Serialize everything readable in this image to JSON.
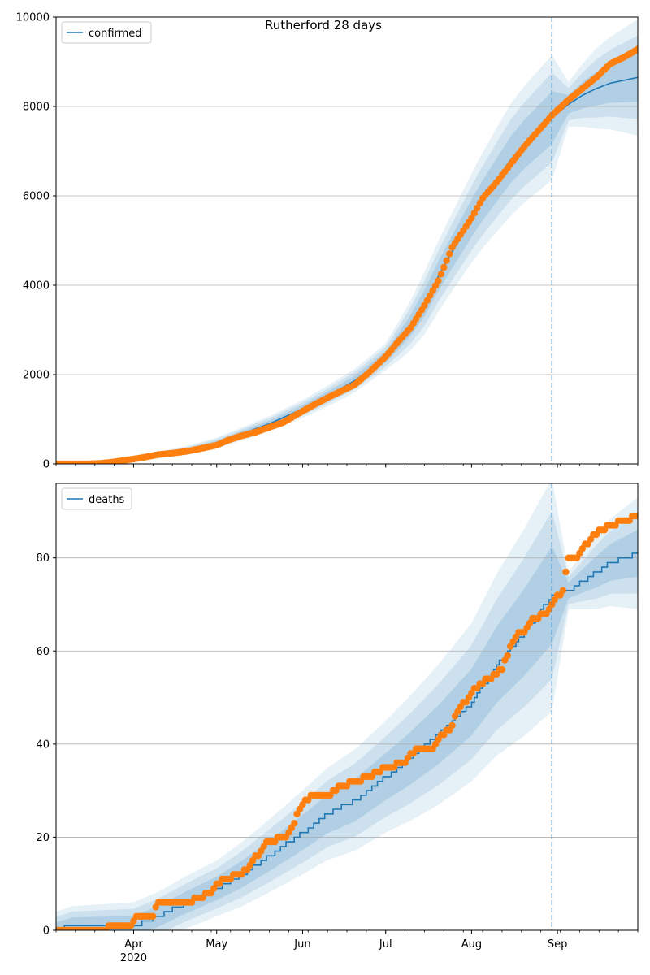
{
  "chart_data": {
    "type": "line",
    "title": "Rutherford 28 days",
    "colors": {
      "fit_line": "#1f77b4",
      "observed_points": "#ff7f0e",
      "uncertainty_band": "#1f77b4",
      "forecast_marker": "#1f77b4",
      "grid": "#b0b0b0"
    },
    "x_axis": {
      "type": "date",
      "range": [
        "2020-03-04",
        "2020-09-30"
      ],
      "tick_labels": [
        "Apr",
        "May",
        "Jun",
        "Jul",
        "Aug",
        "Sep"
      ],
      "tick_dates": [
        "2020-04-01",
        "2020-05-01",
        "2020-06-01",
        "2020-07-01",
        "2020-08-01",
        "2020-09-01"
      ],
      "year_label": "2020"
    },
    "forecast_start": "2020-08-30",
    "panels": [
      {
        "legend": "confirmed",
        "legend_position": "upper left",
        "ylim": [
          0,
          10000
        ],
        "yticks": [
          0,
          2000,
          4000,
          6000,
          8000,
          10000
        ],
        "grid": "y",
        "model_curve": [
          [
            "2020-03-04",
            0
          ],
          [
            "2020-03-15",
            5
          ],
          [
            "2020-03-25",
            40
          ],
          [
            "2020-04-01",
            110
          ],
          [
            "2020-04-10",
            200
          ],
          [
            "2020-04-20",
            300
          ],
          [
            "2020-05-01",
            470
          ],
          [
            "2020-05-10",
            670
          ],
          [
            "2020-05-20",
            900
          ],
          [
            "2020-06-01",
            1230
          ],
          [
            "2020-06-10",
            1520
          ],
          [
            "2020-06-20",
            1870
          ],
          [
            "2020-07-01",
            2400
          ],
          [
            "2020-07-05",
            2700
          ],
          [
            "2020-07-10",
            3100
          ],
          [
            "2020-07-15",
            3600
          ],
          [
            "2020-07-20",
            4200
          ],
          [
            "2020-07-25",
            4750
          ],
          [
            "2020-08-01",
            5500
          ],
          [
            "2020-08-05",
            5900
          ],
          [
            "2020-08-10",
            6350
          ],
          [
            "2020-08-15",
            6800
          ],
          [
            "2020-08-20",
            7150
          ],
          [
            "2020-08-25",
            7450
          ],
          [
            "2020-08-30",
            7750
          ],
          [
            "2020-09-05",
            8050
          ],
          [
            "2020-09-10",
            8250
          ],
          [
            "2020-09-15",
            8400
          ],
          [
            "2020-09-20",
            8520
          ],
          [
            "2020-09-30",
            8650
          ]
        ],
        "band_halfwidth_outer": [
          [
            "2020-03-04",
            20
          ],
          [
            "2020-04-01",
            60
          ],
          [
            "2020-05-01",
            120
          ],
          [
            "2020-06-01",
            200
          ],
          [
            "2020-07-01",
            300
          ],
          [
            "2020-07-15",
            700
          ],
          [
            "2020-08-01",
            1000
          ],
          [
            "2020-08-15",
            1250
          ],
          [
            "2020-08-30",
            1400
          ],
          [
            "2020-09-05",
            500
          ],
          [
            "2020-09-15",
            900
          ],
          [
            "2020-09-30",
            1300
          ]
        ],
        "observed": [
          [
            "2020-03-04",
            0
          ],
          [
            "2020-03-10",
            0
          ],
          [
            "2020-03-15",
            2
          ],
          [
            "2020-03-20",
            12
          ],
          [
            "2020-03-25",
            45
          ],
          [
            "2020-04-01",
            110
          ],
          [
            "2020-04-05",
            150
          ],
          [
            "2020-04-10",
            210
          ],
          [
            "2020-04-15",
            240
          ],
          [
            "2020-04-20",
            280
          ],
          [
            "2020-04-25",
            340
          ],
          [
            "2020-05-01",
            420
          ],
          [
            "2020-05-05",
            530
          ],
          [
            "2020-05-10",
            630
          ],
          [
            "2020-05-15",
            710
          ],
          [
            "2020-05-20",
            820
          ],
          [
            "2020-05-25",
            930
          ],
          [
            "2020-06-01",
            1180
          ],
          [
            "2020-06-05",
            1320
          ],
          [
            "2020-06-10",
            1480
          ],
          [
            "2020-06-15",
            1630
          ],
          [
            "2020-06-20",
            1780
          ],
          [
            "2020-06-25",
            2050
          ],
          [
            "2020-07-01",
            2400
          ],
          [
            "2020-07-05",
            2700
          ],
          [
            "2020-07-10",
            3050
          ],
          [
            "2020-07-15",
            3550
          ],
          [
            "2020-07-20",
            4100
          ],
          [
            "2020-07-25",
            4850
          ],
          [
            "2020-08-01",
            5500
          ],
          [
            "2020-08-05",
            5950
          ],
          [
            "2020-08-10",
            6300
          ],
          [
            "2020-08-15",
            6700
          ],
          [
            "2020-08-20",
            7100
          ],
          [
            "2020-08-25",
            7450
          ],
          [
            "2020-08-30",
            7800
          ],
          [
            "2020-09-05",
            8150
          ],
          [
            "2020-09-10",
            8400
          ],
          [
            "2020-09-15",
            8650
          ],
          [
            "2020-09-20",
            8950
          ],
          [
            "2020-09-25",
            9100
          ],
          [
            "2020-09-30",
            9280
          ]
        ]
      },
      {
        "legend": "deaths",
        "legend_position": "upper left",
        "ylim": [
          0,
          96
        ],
        "yticks": [
          0,
          20,
          40,
          60,
          80
        ],
        "grid": "y",
        "model_curve": [
          [
            "2020-03-04",
            0
          ],
          [
            "2020-03-10",
            1
          ],
          [
            "2020-04-01",
            1
          ],
          [
            "2020-04-10",
            3
          ],
          [
            "2020-04-20",
            6
          ],
          [
            "2020-05-01",
            9
          ],
          [
            "2020-05-10",
            12
          ],
          [
            "2020-05-20",
            16
          ],
          [
            "2020-06-01",
            21
          ],
          [
            "2020-06-10",
            25
          ],
          [
            "2020-06-20",
            28
          ],
          [
            "2020-07-01",
            33
          ],
          [
            "2020-07-10",
            37
          ],
          [
            "2020-07-20",
            42
          ],
          [
            "2020-08-01",
            49
          ],
          [
            "2020-08-10",
            57
          ],
          [
            "2020-08-20",
            64
          ],
          [
            "2020-08-30",
            72
          ],
          [
            "2020-09-05",
            73
          ],
          [
            "2020-09-10",
            75
          ],
          [
            "2020-09-15",
            77
          ],
          [
            "2020-09-20",
            79
          ],
          [
            "2020-09-30",
            81
          ]
        ],
        "band_halfwidth_outer": [
          [
            "2020-03-04",
            4
          ],
          [
            "2020-04-01",
            5
          ],
          [
            "2020-05-01",
            6
          ],
          [
            "2020-06-01",
            9
          ],
          [
            "2020-07-01",
            12
          ],
          [
            "2020-08-01",
            17
          ],
          [
            "2020-08-30",
            25
          ],
          [
            "2020-09-05",
            4
          ],
          [
            "2020-09-15",
            8
          ],
          [
            "2020-09-30",
            12
          ]
        ],
        "observed": [
          [
            "2020-03-04",
            0
          ],
          [
            "2020-03-15",
            0
          ],
          [
            "2020-03-31",
            1
          ],
          [
            "2020-04-02",
            3
          ],
          [
            "2020-04-08",
            3
          ],
          [
            "2020-04-10",
            6
          ],
          [
            "2020-04-20",
            6
          ],
          [
            "2020-04-25",
            7
          ],
          [
            "2020-04-29",
            8
          ],
          [
            "2020-05-03",
            11
          ],
          [
            "2020-05-10",
            12
          ],
          [
            "2020-05-13",
            14
          ],
          [
            "2020-05-18",
            18
          ],
          [
            "2020-05-20",
            19
          ],
          [
            "2020-05-26",
            20
          ],
          [
            "2020-05-28",
            22
          ],
          [
            "2020-06-01",
            27
          ],
          [
            "2020-06-04",
            29
          ],
          [
            "2020-06-10",
            29
          ],
          [
            "2020-06-15",
            31
          ],
          [
            "2020-06-20",
            32
          ],
          [
            "2020-06-25",
            33
          ],
          [
            "2020-06-28",
            34
          ],
          [
            "2020-07-01",
            35
          ],
          [
            "2020-07-08",
            36
          ],
          [
            "2020-07-12",
            39
          ],
          [
            "2020-07-18",
            39
          ],
          [
            "2020-07-20",
            41
          ],
          [
            "2020-07-24",
            43
          ],
          [
            "2020-07-27",
            47
          ],
          [
            "2020-08-01",
            51
          ],
          [
            "2020-08-04",
            53
          ],
          [
            "2020-08-08",
            54
          ],
          [
            "2020-08-12",
            56
          ],
          [
            "2020-08-15",
            61
          ],
          [
            "2020-08-18",
            64
          ],
          [
            "2020-08-20",
            64
          ],
          [
            "2020-08-23",
            67
          ],
          [
            "2020-08-28",
            68
          ],
          [
            "2020-08-30",
            70
          ],
          [
            "2020-09-03",
            73
          ],
          [
            "2020-09-05",
            80
          ],
          [
            "2020-09-08",
            80
          ],
          [
            "2020-09-10",
            82
          ],
          [
            "2020-09-13",
            84
          ],
          [
            "2020-09-17",
            86
          ],
          [
            "2020-09-20",
            87
          ],
          [
            "2020-09-25",
            88
          ],
          [
            "2020-09-30",
            89
          ]
        ]
      }
    ]
  }
}
